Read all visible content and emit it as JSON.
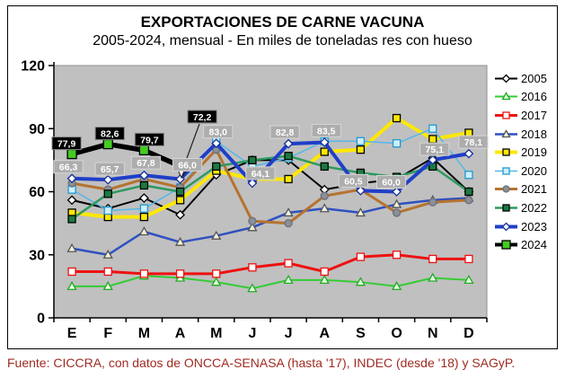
{
  "title": "EXPORTACIONES DE CARNE VACUNA",
  "subtitle": "2005-2024, mensual - En miles de toneladas res con hueso",
  "footer": "Fuente: CICCRA, con datos de ONCCA-SENASA (hasta '17), INDEC (desde '18) y SAGyP.",
  "chart_data": {
    "type": "line",
    "title": "EXPORTACIONES DE CARNE VACUNA",
    "subtitle": "2005-2024, mensual - En miles de toneladas res con hueso",
    "categories": [
      "E",
      "F",
      "M",
      "A",
      "M",
      "J",
      "J",
      "A",
      "S",
      "O",
      "N",
      "D"
    ],
    "ylim": [
      0,
      120
    ],
    "yticks": [
      0,
      30,
      60,
      90,
      120
    ],
    "grid": false,
    "plot_bg": "#c0c0c0",
    "legend_position": "right",
    "series": [
      {
        "name": "2005",
        "color": "#000000",
        "width": 2,
        "marker": {
          "shape": "diamond",
          "fill": "#ffffff",
          "stroke": "#000000"
        },
        "values": [
          56,
          52,
          57,
          49,
          68,
          75,
          75,
          61,
          64,
          66,
          76,
          60
        ]
      },
      {
        "name": "2016",
        "color": "#33cc33",
        "width": 2,
        "marker": {
          "shape": "triangle",
          "fill": "#e8ffe8",
          "stroke": "#22aa22"
        },
        "values": [
          15,
          15,
          20,
          19,
          17,
          14,
          18,
          18,
          17,
          15,
          19,
          18
        ]
      },
      {
        "name": "2017",
        "color": "#ee1111",
        "width": 3,
        "marker": {
          "shape": "square",
          "fill": "#ffffff",
          "stroke": "#ee1111"
        },
        "values": [
          22,
          22,
          21,
          21,
          21,
          24,
          26,
          22,
          29,
          30,
          28,
          28
        ]
      },
      {
        "name": "2018",
        "color": "#3050c0",
        "width": 2.5,
        "marker": {
          "shape": "triangle",
          "fill": "#f2f2dc",
          "stroke": "#555555"
        },
        "values": [
          33,
          30,
          41,
          36,
          39,
          43,
          50,
          52,
          50,
          54,
          56,
          57
        ]
      },
      {
        "name": "2019",
        "color": "#ffe800",
        "width": 4,
        "marker": {
          "shape": "square",
          "fill": "#ffe800",
          "stroke": "#000000"
        },
        "values": [
          50,
          48,
          48,
          56,
          70,
          66,
          66,
          79,
          80,
          95,
          85,
          88
        ]
      },
      {
        "name": "2020",
        "color": "#55b8e8",
        "width": 1.5,
        "marker": {
          "shape": "square",
          "fill": "#cfeefc",
          "stroke": "#2299cc"
        },
        "values": [
          61,
          51,
          52,
          62,
          84,
          72,
          76,
          84,
          84,
          83,
          90,
          68
        ]
      },
      {
        "name": "2021",
        "color": "#b5732f",
        "width": 3,
        "marker": {
          "shape": "circle",
          "fill": "#8a8f98",
          "stroke": "#6a6f78"
        },
        "values": [
          64,
          61,
          66,
          62,
          80,
          46,
          45,
          58,
          61,
          50,
          55,
          56
        ]
      },
      {
        "name": "2022",
        "color": "#2e9960",
        "width": 2.5,
        "marker": {
          "shape": "square",
          "fill": "#1a7a40",
          "stroke": "#000000"
        },
        "values": [
          47,
          59,
          63,
          60,
          72,
          75,
          77,
          72,
          69,
          67,
          72,
          60
        ]
      },
      {
        "name": "2023",
        "color": "#1f3fc8",
        "width": 4,
        "marker": {
          "shape": "diamond",
          "fill": "#ffffff",
          "stroke": "#16309a"
        },
        "values": [
          66.3,
          65.7,
          67.8,
          66.0,
          83.0,
          64.1,
          82.8,
          83.5,
          60.5,
          60.0,
          75.1,
          78.1
        ],
        "labels": [
          "66,3",
          "65,7",
          "67,8",
          "66,0",
          "83,0",
          "64,1",
          "82,8",
          "83,5",
          "60,5",
          "60,0",
          "75,1",
          "78,1"
        ],
        "label_style": "gray"
      },
      {
        "name": "2024",
        "color": "#000000",
        "width": 5.5,
        "marker": {
          "shape": "square",
          "fill": "#44cc22",
          "stroke": "#000000"
        },
        "values": [
          77.9,
          82.6,
          79.7,
          72.2
        ],
        "labels": [
          "77,9",
          "82,6",
          "79,7",
          "72,2"
        ],
        "label_style": "black"
      }
    ],
    "label_colors": {
      "gray_bg": "#adadad",
      "gray_border": "#d6d6d6",
      "black_bg": "#000000",
      "black_border": "#888888",
      "text": "#ffffff"
    }
  },
  "legend": {
    "items": [
      "2005",
      "2016",
      "2017",
      "2018",
      "2019",
      "2020",
      "2021",
      "2022",
      "2023",
      "2024"
    ]
  }
}
